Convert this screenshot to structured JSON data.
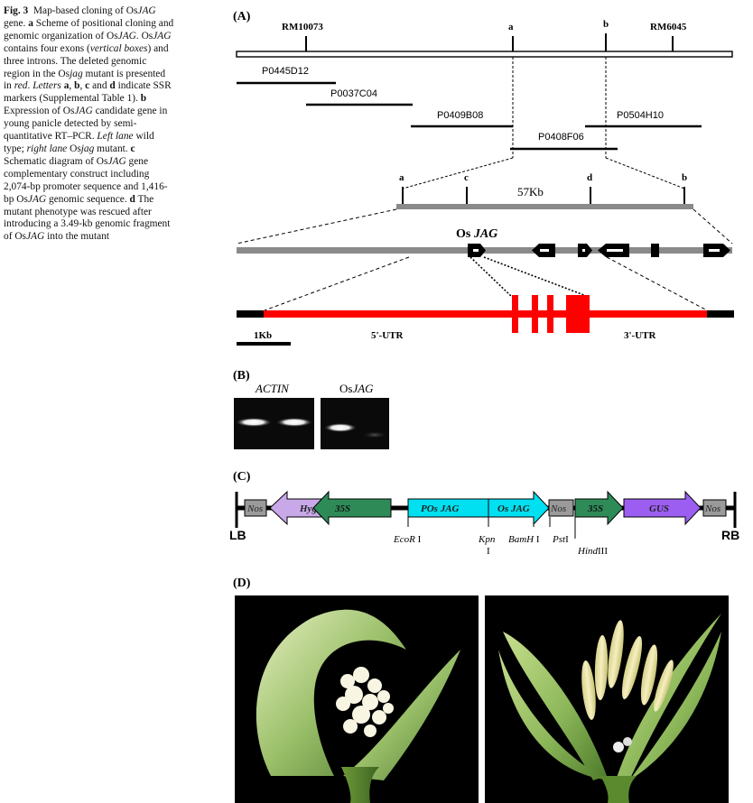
{
  "caption": {
    "fig_label": "Fig. 3",
    "s1": "Map-based cloning of Os",
    "s1i": "JAG",
    "s2": " gene. ",
    "la": "a",
    "s3": " Scheme of positional cloning and genomic organization of Os",
    "s3i": "JAG",
    "s4": ". Os",
    "s4i": "JAG",
    "s5": " contains four exons (",
    "s5i": "vertical boxes",
    "s6": ") and three introns. The deleted genomic region in the Os",
    "s6i": "jag",
    "s7": " mutant is presented in ",
    "s7i": "red",
    "s8": ". ",
    "s8i": "Letters",
    "s9": " ",
    "la2": "a",
    "s10": ", ",
    "lb": "b",
    "s11": ", ",
    "lc": "c",
    "s12": " and ",
    "ld": "d",
    "s13": " indicate SSR markers (Supplemental Table 1). ",
    "lb2": "b",
    "s14": " Expression of Os",
    "s14i": "JAG",
    "s15": " candidate gene in young panicle detected by semi-quantitative RT–PCR. ",
    "s15i": "Left lane",
    "s16": " wild type; ",
    "s16i": "right lane",
    "s17": " Os",
    "s17i": "jag",
    "s18": " mutant. ",
    "lc2": "c",
    "s19": " Schematic diagram of Os",
    "s19i": "JAG",
    "s20": " gene complementary construct including 2,074-bp promoter sequence and 1,416-bp Os",
    "s20i": "JAG",
    "s21": " genomic sequence. ",
    "ld2": "d",
    "s22": " The mutant phenotype was rescued after introducing a 3.49-kb genomic fragment of Os",
    "s22i": "JAG",
    "s23": " into the mutant"
  },
  "panelA": {
    "label": "(A)",
    "markers": [
      "RM10073",
      "a",
      "b",
      "RM6045"
    ],
    "clones": [
      "P0445D12",
      "P0037C04",
      "P0409B08",
      "P0504H10",
      "P0408F06"
    ],
    "sub_markers": [
      "a",
      "c",
      "d",
      "b"
    ],
    "size": "57Kb",
    "gene_prefix": "Os ",
    "gene_name": "JAG",
    "scale": "1Kb",
    "utr5": "5'-UTR",
    "utr3": "3'-UTR",
    "colors": {
      "deleted": "#ff0000",
      "bac": "#888888"
    }
  },
  "panelB": {
    "label": "(B)",
    "actin": "ACTIN",
    "jag_prefix": "Os",
    "jag_name": "JAG"
  },
  "panelC": {
    "label": "(C)",
    "lb": "LB",
    "rb": "RB",
    "boxes": [
      "Nos",
      "Hyg",
      "35S",
      "POs JAG",
      "Os JAG",
      "Nos",
      "35S",
      "GUS",
      "Nos"
    ],
    "sites": {
      "ecor": "EcoR",
      "ecor_r": "I",
      "kpn": "Kpn",
      "kpn_r": "I",
      "bamh": "BamH",
      "bamh_r": "I",
      "pst": "Pst",
      "pst_r": "I",
      "hind": "Hind",
      "hind_r": "III"
    },
    "colors": {
      "hyg": "#c8a8e8",
      "s35": "#2e8b57",
      "pos": "#00e0f0",
      "gus": "#9b5ef0",
      "nos": "#9a9a9a"
    }
  },
  "panelD": {
    "label": "(D)"
  }
}
